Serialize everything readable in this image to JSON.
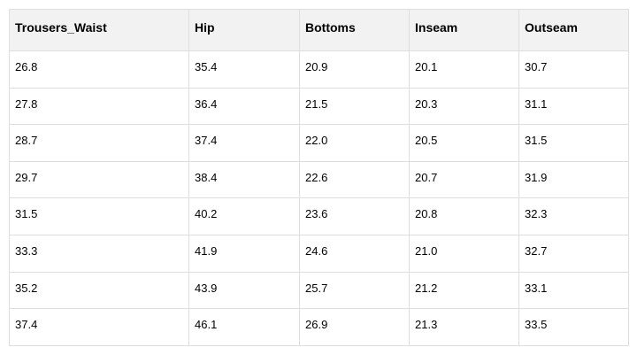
{
  "table": {
    "columns": [
      "Trousers_Waist",
      "Hip",
      "Bottoms",
      "Inseam",
      "Outseam"
    ],
    "rows": [
      [
        "26.8",
        "35.4",
        "20.9",
        "20.1",
        "30.7"
      ],
      [
        "27.8",
        "36.4",
        "21.5",
        "20.3",
        "31.1"
      ],
      [
        "28.7",
        "37.4",
        "22.0",
        "20.5",
        "31.5"
      ],
      [
        "29.7",
        "38.4",
        "22.6",
        "20.7",
        "31.9"
      ],
      [
        "31.5",
        "40.2",
        "23.6",
        "20.8",
        "32.3"
      ],
      [
        "33.3",
        "41.9",
        "24.6",
        "21.0",
        "32.7"
      ],
      [
        "35.2",
        "43.9",
        "25.7",
        "21.2",
        "33.1"
      ],
      [
        "37.4",
        "46.1",
        "26.9",
        "21.3",
        "33.5"
      ]
    ]
  }
}
